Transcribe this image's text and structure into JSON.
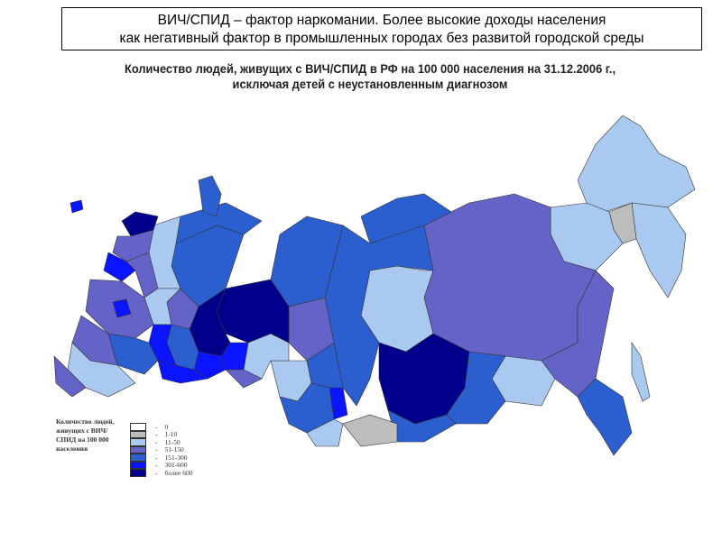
{
  "header": {
    "line1": "ВИЧ/СПИД – фактор наркомании. Более высокие доходы населения",
    "line2": "как негативный фактор в промышленных городах без развитой городской среды"
  },
  "map": {
    "title_line1": "Количество людей, живущих с ВИЧ/СПИД в РФ на 100 000 населения на 31.12.2006 г.,",
    "title_line2": "исключая детей с неустановленным диагнозом"
  },
  "legend": {
    "title": "Количество людей, живущих с ВИЧ/СПИД на 100 000 населения",
    "items": [
      {
        "label": "0",
        "color": "#ffffff"
      },
      {
        "label": "1-10",
        "color": "#bdbdbd"
      },
      {
        "label": "11-50",
        "color": "#a9c9f0"
      },
      {
        "label": "51-150",
        "color": "#6464c8"
      },
      {
        "label": "151-300",
        "color": "#2b5fd0"
      },
      {
        "label": "301-600",
        "color": "#0a14ff"
      },
      {
        "label": "более 600",
        "color": "#00008c"
      }
    ]
  }
}
